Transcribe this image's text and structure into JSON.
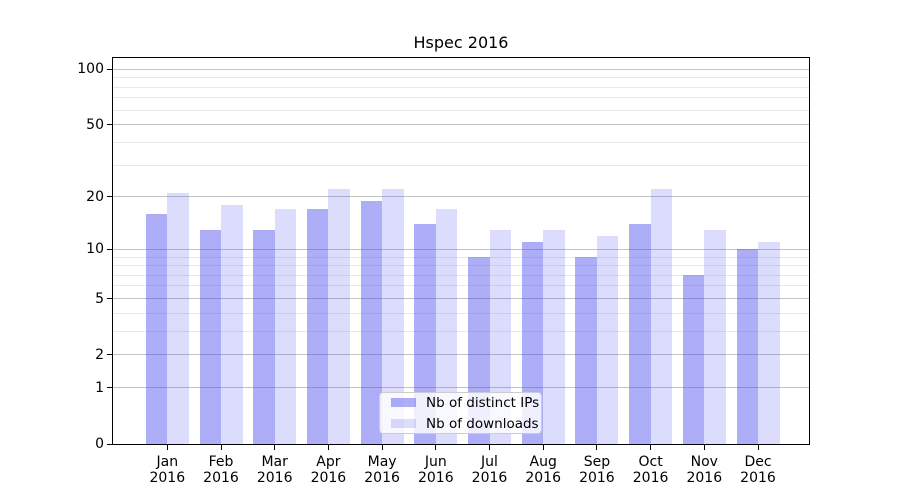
{
  "chart_data": {
    "type": "bar",
    "title": "Hspec 2016",
    "categories": [
      "Jan 2016",
      "Feb 2016",
      "Mar 2016",
      "Apr 2016",
      "May 2016",
      "Jun 2016",
      "Jul 2016",
      "Aug 2016",
      "Sep 2016",
      "Oct 2016",
      "Nov 2016",
      "Dec 2016"
    ],
    "series": [
      {
        "name": "Nb of distinct IPs",
        "color": "rgba(68,68,240,0.44)",
        "values": [
          16,
          13,
          13,
          17,
          19,
          14,
          9,
          11,
          9,
          14,
          7,
          10
        ]
      },
      {
        "name": "Nb of downloads",
        "color": "rgba(68,68,240,0.19)",
        "values": [
          21,
          18,
          17,
          22,
          22,
          17,
          13,
          13,
          12,
          22,
          13,
          11
        ]
      }
    ],
    "xlabel": "",
    "ylabel": "",
    "yscale": "log1p",
    "ylim": [
      0,
      115
    ],
    "yticks": [
      0,
      1,
      2,
      5,
      10,
      20,
      50,
      100
    ],
    "y_minor_ticks": [
      3,
      4,
      6,
      7,
      8,
      9,
      30,
      40,
      60,
      70,
      80,
      90
    ],
    "grid": {
      "on": true,
      "major_color": "#c3c3c3",
      "minor_color": "#e9e9e9"
    },
    "legend": {
      "position": "lower center",
      "border_color": "#cccccc"
    },
    "frame_color": "#000000",
    "background": "#ffffff"
  }
}
